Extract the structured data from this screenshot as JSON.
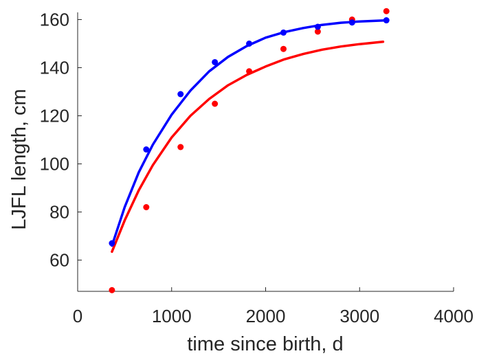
{
  "chart_data": {
    "type": "scatter",
    "title": "",
    "xlabel": "time since birth, d",
    "ylabel": "LJFL length, cm",
    "xlim": [
      0,
      4000
    ],
    "ylim": [
      47,
      163
    ],
    "xticks": [
      0,
      1000,
      2000,
      3000,
      4000
    ],
    "yticks": [
      60,
      80,
      100,
      120,
      140,
      160
    ],
    "grid": false,
    "legend": "none",
    "series": [
      {
        "kind": "points",
        "color": "#ff0000",
        "x": [
          365,
          730,
          1095,
          1460,
          1825,
          2190,
          2555,
          2920,
          3285
        ],
        "y": [
          47.5,
          82,
          107,
          125,
          138.5,
          147.8,
          155,
          160,
          163.5
        ]
      },
      {
        "kind": "points",
        "color": "#0000ff",
        "x": [
          365,
          730,
          1095,
          1460,
          1825,
          2190,
          2555,
          2920,
          3285
        ],
        "y": [
          67,
          106,
          129,
          142.3,
          150,
          154.6,
          157,
          158.8,
          159.7
        ]
      },
      {
        "kind": "line",
        "color": "#ff0000",
        "x": [
          365,
          500,
          650,
          800,
          1000,
          1200,
          1400,
          1600,
          1800,
          2000,
          2200,
          2400,
          2600,
          2800,
          3000,
          3250
        ],
        "y": [
          63.5,
          76.5,
          89,
          99.5,
          111,
          120,
          127,
          132.7,
          137,
          140.5,
          143.5,
          145.7,
          147.5,
          148.8,
          149.8,
          150.8
        ]
      },
      {
        "kind": "line",
        "color": "#0000ff",
        "x": [
          365,
          500,
          650,
          800,
          1000,
          1200,
          1400,
          1600,
          1800,
          2000,
          2200,
          2400,
          2600,
          2800,
          3000,
          3285
        ],
        "y": [
          66,
          82,
          96.5,
          108,
          120.5,
          130.5,
          138.5,
          144.5,
          149,
          152.5,
          154.8,
          156.5,
          157.8,
          158.7,
          159.2,
          159.7
        ]
      }
    ]
  }
}
